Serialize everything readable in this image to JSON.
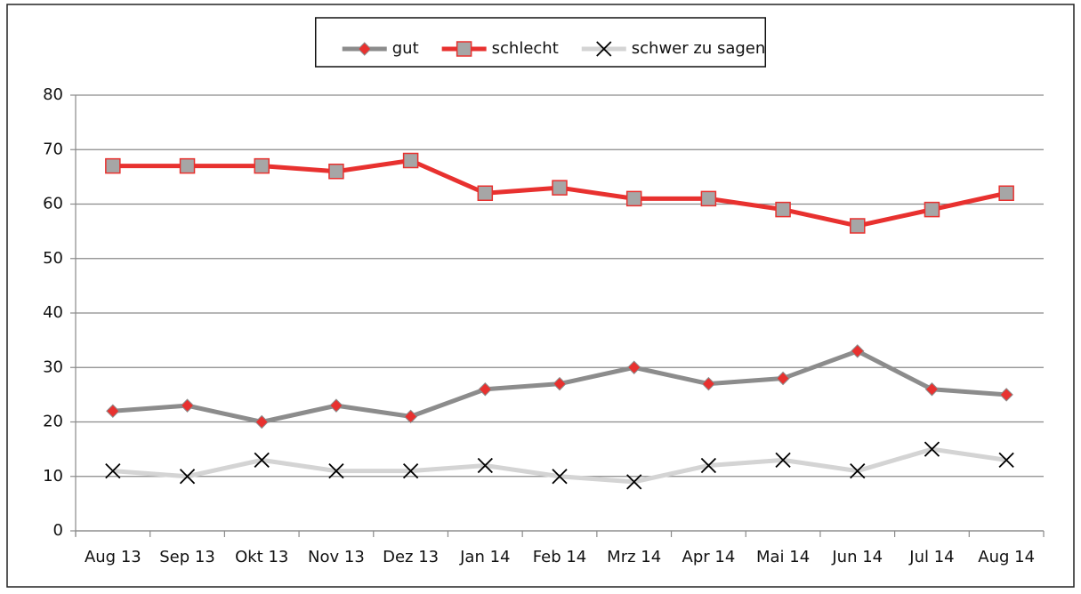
{
  "chart_data": {
    "type": "line",
    "categories": [
      "Aug 13",
      "Sep 13",
      "Okt 13",
      "Nov 13",
      "Dez 13",
      "Jan 14",
      "Feb 14",
      "Mrz 14",
      "Apr 14",
      "Mai 14",
      "Jun 14",
      "Jul 14",
      "Aug 14"
    ],
    "series": [
      {
        "name": "gut",
        "color": "#8c8c8c",
        "marker": "diamond",
        "marker_color": "#e8312f",
        "values": [
          22,
          23,
          20,
          23,
          21,
          26,
          27,
          30,
          27,
          28,
          33,
          26,
          25
        ]
      },
      {
        "name": "schlecht",
        "color": "#e8312f",
        "marker": "square",
        "marker_color": "#a6a6a6",
        "values": [
          67,
          67,
          67,
          66,
          68,
          62,
          63,
          61,
          61,
          59,
          56,
          59,
          62
        ]
      },
      {
        "name": "schwer zu sagen",
        "color": "#d4d4d4",
        "marker": "x",
        "marker_color": "#000000",
        "values": [
          11,
          10,
          13,
          11,
          11,
          12,
          10,
          9,
          12,
          13,
          11,
          15,
          13
        ]
      }
    ],
    "ylim": [
      0,
      80
    ],
    "yticks": [
      0,
      10,
      20,
      30,
      40,
      50,
      60,
      70,
      80
    ],
    "grid": true,
    "legend": "top"
  }
}
